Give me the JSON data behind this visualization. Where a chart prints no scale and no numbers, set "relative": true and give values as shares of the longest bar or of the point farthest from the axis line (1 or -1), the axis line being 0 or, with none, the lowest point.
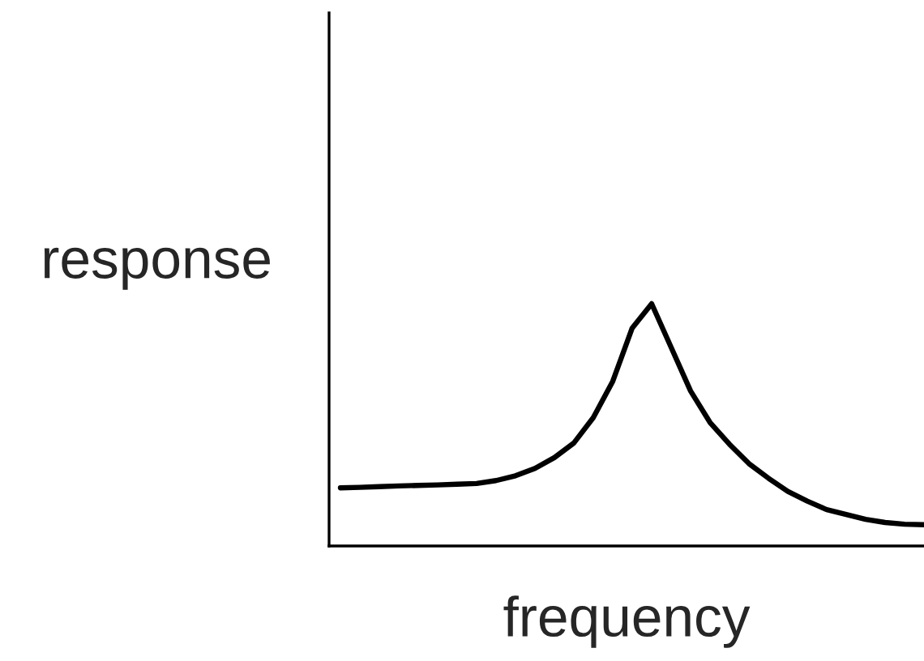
{
  "chart_data": {
    "type": "line",
    "relative": true,
    "xlabel": "frequency",
    "ylabel": "response",
    "categories": [
      null,
      null,
      null,
      null,
      null,
      null,
      null,
      null,
      null,
      null,
      null,
      null,
      null,
      null,
      null,
      null,
      null,
      null,
      null,
      null,
      null,
      null,
      null,
      null,
      null,
      null,
      null,
      null,
      null,
      null,
      null
    ],
    "series": [
      {
        "color": "#000000",
        "values": [
          0.24,
          0.242,
          0.245,
          0.248,
          0.25,
          0.252,
          0.255,
          0.258,
          0.27,
          0.29,
          0.32,
          0.365,
          0.425,
          0.53,
          0.68,
          0.9,
          1.0,
          0.82,
          0.64,
          0.51,
          0.42,
          0.34,
          0.28,
          0.225,
          0.185,
          0.15,
          0.13,
          0.11,
          0.097,
          0.09,
          0.088
        ]
      }
    ],
    "legend": false,
    "marker": "none",
    "line_style": "solid"
  }
}
